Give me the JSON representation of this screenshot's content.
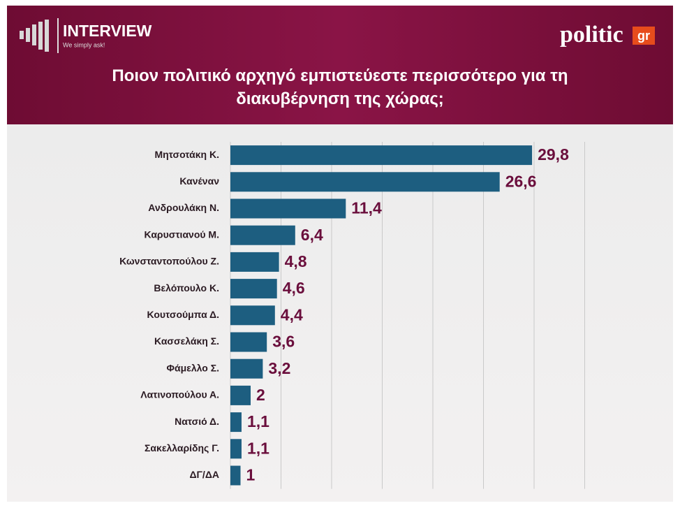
{
  "header": {
    "brand": "INTERVIEW",
    "tagline": "We simply ask!",
    "logo": "politic",
    "logo_suffix": "gr"
  },
  "chart_data": {
    "type": "hbar",
    "title": "Ποιον πολιτικό αρχηγό εμπιστεύεστε περισσότερο για τη διακυβέρνηση της χώρας;",
    "categories": [
      "Μητσοτάκη Κ.",
      "Κανέναν",
      "Ανδρουλάκη Ν.",
      "Καρυστιανού Μ.",
      "Κωνσταντοπούλου Ζ.",
      "Βελόπουλο Κ.",
      "Κουτσούμπα Δ.",
      "Κασσελάκη Σ.",
      "Φάμελλο Σ.",
      "Λατινοπούλου Α.",
      "Νατσιό Δ.",
      "Σακελλαρίδης Γ.",
      "ΔΓ/ΔΑ"
    ],
    "values": [
      29.8,
      26.6,
      11.4,
      6.4,
      4.8,
      4.6,
      4.4,
      3.6,
      3.2,
      2,
      1.1,
      1.1,
      1
    ],
    "value_labels": [
      "29,8",
      "26,6",
      "11,4",
      "6,4",
      "4,8",
      "4,6",
      "4,4",
      "3,6",
      "3,2",
      "2",
      "1,1",
      "1,1",
      "1"
    ],
    "color": "#1d5e80",
    "label_color": "#6a0e3c",
    "xlim": [
      0,
      35
    ],
    "xticks": [
      0,
      5,
      10,
      15,
      20,
      25,
      30,
      35
    ],
    "grid": true
  }
}
